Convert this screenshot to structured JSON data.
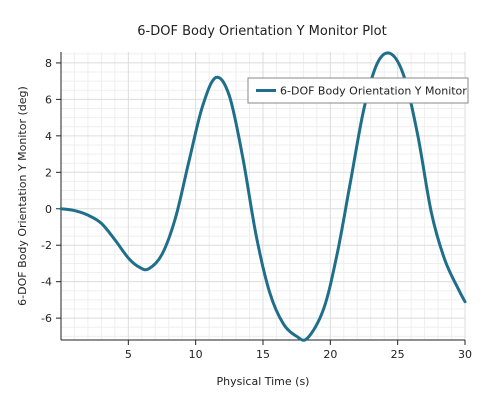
{
  "chart_data": {
    "type": "line",
    "title": "6-DOF Body Orientation Y Monitor Plot",
    "xlabel": "Physical Time (s)",
    "ylabel": "6-DOF Body Orientation Y Monitor (deg)",
    "xlim": [
      0,
      30
    ],
    "ylim": [
      -7.2,
      8.6
    ],
    "xticks": [
      5,
      10,
      15,
      20,
      25,
      30
    ],
    "yticks": [
      -6,
      -4,
      -2,
      0,
      2,
      4,
      6,
      8
    ],
    "grid": true,
    "legend_position": "top-right",
    "colors": {
      "series": "#1f6f8b",
      "grid_major": "#dcdcdc",
      "grid_minor": "#efefef",
      "axis": "#222222",
      "legend_border": "#888888"
    },
    "series": [
      {
        "name": "6-DOF Body Orientation Y Monitor",
        "x": [
          0,
          1,
          2,
          3,
          4,
          5,
          5.8,
          6.5,
          7.5,
          8.5,
          9.5,
          10.5,
          11.5,
          12.5,
          13.5,
          14.5,
          15.5,
          16.5,
          17.5,
          18.3,
          19.5,
          20.5,
          21.5,
          22.5,
          23.5,
          24.5,
          25.5,
          26.5,
          27.5,
          28.5,
          29.5,
          30
        ],
        "y": [
          0,
          -0.1,
          -0.35,
          -0.8,
          -1.7,
          -2.7,
          -3.2,
          -3.3,
          -2.5,
          -0.5,
          2.6,
          5.6,
          7.2,
          6.2,
          2.8,
          -1.5,
          -4.6,
          -6.3,
          -7.0,
          -7.1,
          -5.5,
          -2.5,
          1.5,
          5.5,
          8.0,
          8.5,
          7.2,
          4.0,
          -0.2,
          -2.8,
          -4.4,
          -5.1
        ]
      }
    ]
  }
}
